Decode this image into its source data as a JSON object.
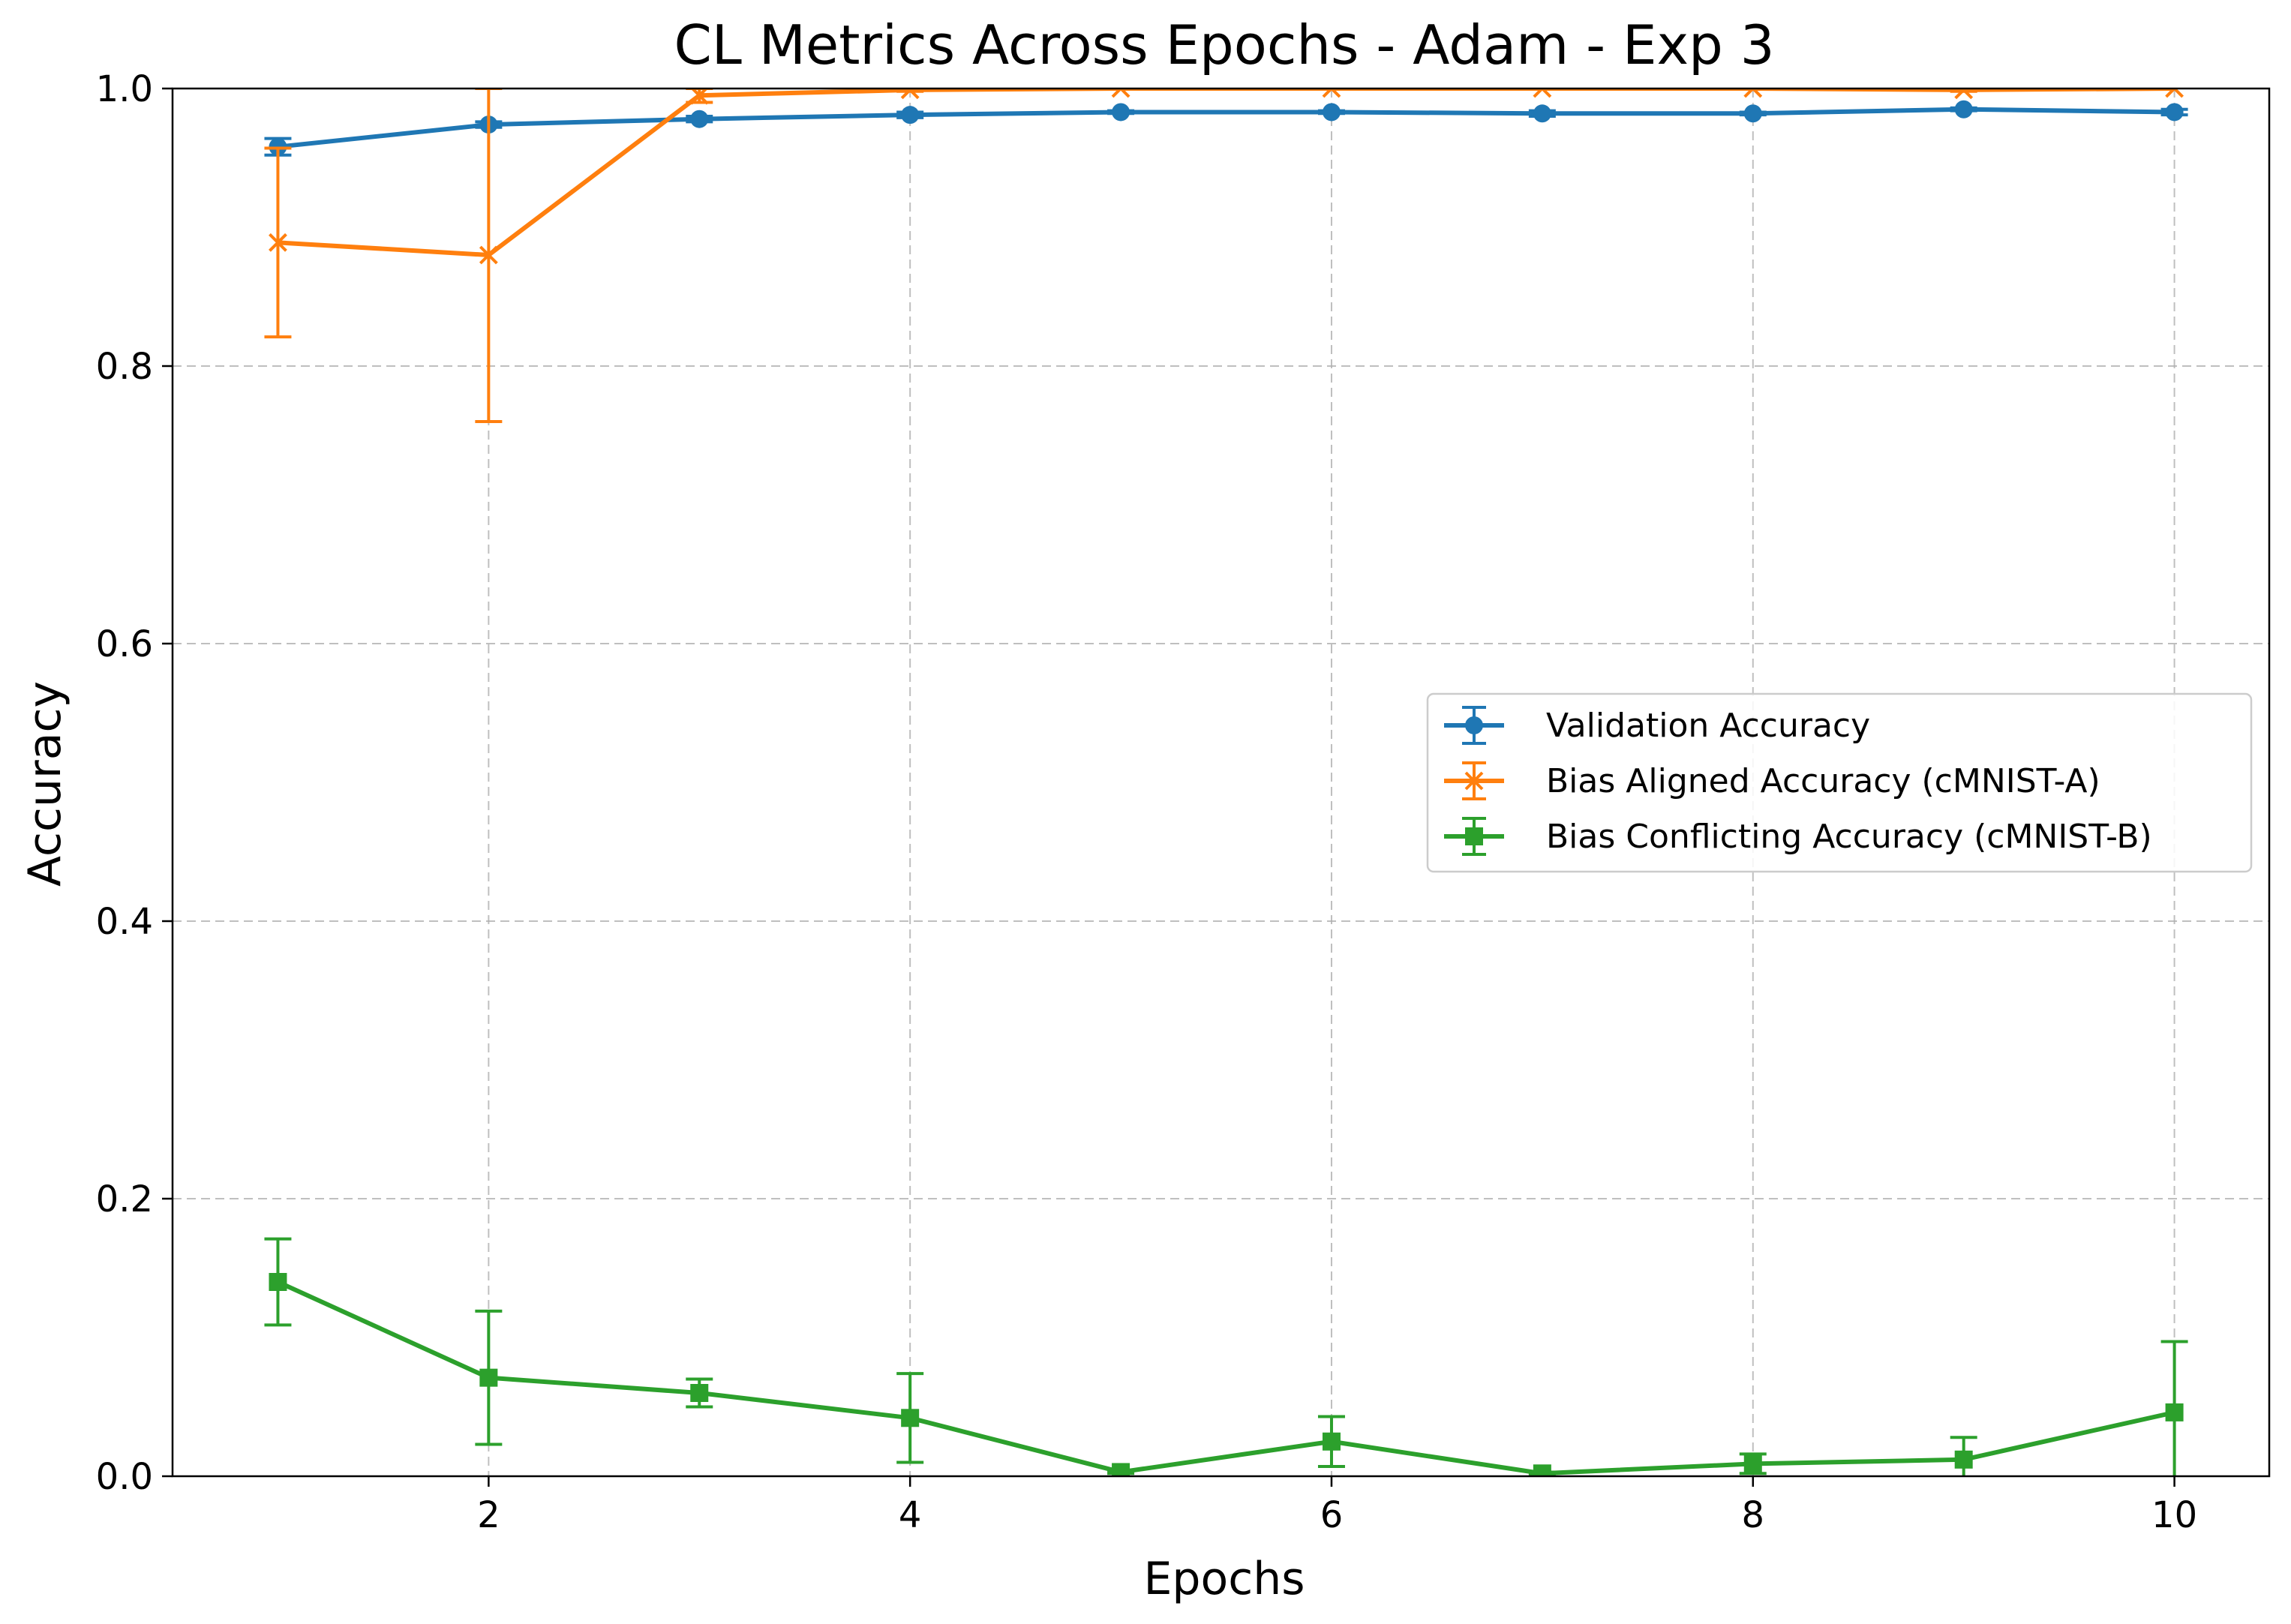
{
  "chart_data": {
    "type": "line",
    "title": "CL Metrics Across Epochs - Adam - Exp 3",
    "xlabel": "Epochs",
    "ylabel": "Accuracy",
    "xlim": [
      0.5,
      10.45
    ],
    "ylim": [
      0.0,
      1.0
    ],
    "xticks": [
      "2",
      "4",
      "6",
      "8",
      "10"
    ],
    "yticks": [
      "0.0",
      "0.2",
      "0.4",
      "0.6",
      "0.8",
      "1.0"
    ],
    "grid": true,
    "legend_position": "center-right",
    "x": [
      1,
      2,
      3,
      4,
      5,
      6,
      7,
      8,
      9,
      10
    ],
    "series": [
      {
        "name": "Validation Accuracy",
        "color": "#1f77b4",
        "marker": "circle",
        "values": [
          0.958,
          0.974,
          0.978,
          0.981,
          0.983,
          0.983,
          0.982,
          0.982,
          0.985,
          0.983
        ],
        "error": [
          0.006,
          0.002,
          0.002,
          0.002,
          0.001,
          0.001,
          0.002,
          0.001,
          0.001,
          0.002
        ]
      },
      {
        "name": "Bias Aligned Accuracy (cMNIST-A)",
        "color": "#ff7f0e",
        "marker": "x",
        "values": [
          0.889,
          0.88,
          0.995,
          0.999,
          1.0,
          1.0,
          1.0,
          1.0,
          0.999,
          1.0
        ],
        "error": [
          0.068,
          0.12,
          0.005,
          0.001,
          0.0,
          0.0,
          0.0,
          0.0,
          0.001,
          0.0
        ]
      },
      {
        "name": "Bias Conflicting Accuracy (cMNIST-B)",
        "color": "#2ca02c",
        "marker": "square",
        "values": [
          0.14,
          0.071,
          0.06,
          0.042,
          0.003,
          0.025,
          0.002,
          0.009,
          0.012,
          0.046
        ],
        "error": [
          0.031,
          0.048,
          0.01,
          0.032,
          0.001,
          0.018,
          0.001,
          0.007,
          0.016,
          0.051
        ]
      }
    ]
  }
}
